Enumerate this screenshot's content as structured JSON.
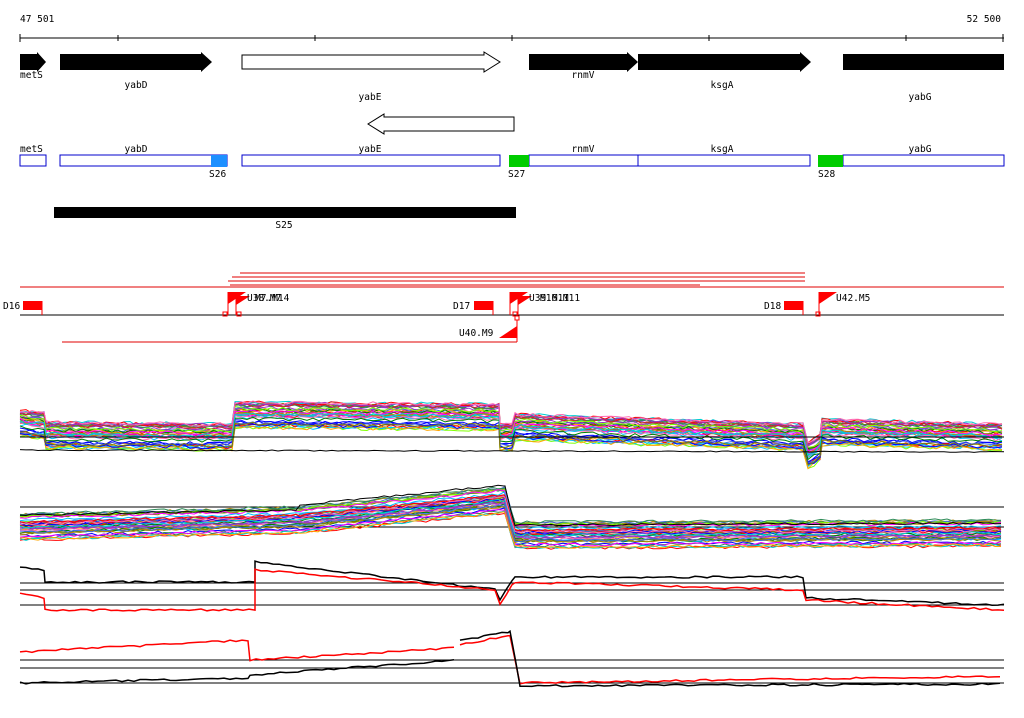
{
  "ruler": {
    "start": "47 501",
    "end": "52 500"
  },
  "genes_top": [
    {
      "name": "metS",
      "label": "metS"
    },
    {
      "name": "yabD",
      "label": "yabD"
    },
    {
      "name": "yabE",
      "label": "yabE"
    },
    {
      "name": "rnmV",
      "label": "rnmV"
    },
    {
      "name": "ksgA",
      "label": "ksgA"
    },
    {
      "name": "yabG",
      "label": "yabG"
    }
  ],
  "genes_boxes": [
    {
      "name": "metS",
      "label": "metS"
    },
    {
      "name": "yabD",
      "label": "yabD"
    },
    {
      "name": "yabE",
      "label": "yabE"
    },
    {
      "name": "rnmV",
      "label": "rnmV"
    },
    {
      "name": "ksgA",
      "label": "ksgA"
    },
    {
      "name": "yabG",
      "label": "yabG"
    }
  ],
  "segments": [
    {
      "label": "S26",
      "color": "#1e90ff"
    },
    {
      "label": "S27",
      "color": "#00cc00"
    },
    {
      "label": "S28",
      "color": "#00cc00"
    }
  ],
  "region": {
    "label": "S25"
  },
  "down_markers": [
    {
      "label": "D16"
    },
    {
      "label": "D17"
    },
    {
      "label": "D18"
    }
  ],
  "up_markers": [
    {
      "label": "U38.M7"
    },
    {
      "label": "U39.M11"
    },
    {
      "label": "U42.M5"
    }
  ],
  "lower_marker": {
    "label": "U40.M9"
  },
  "tracks": [
    {
      "name": "expression-track-1"
    },
    {
      "name": "expression-track-2"
    },
    {
      "name": "expression-track-3"
    },
    {
      "name": "expression-track-4"
    }
  ],
  "colors": {
    "arrow": "#000000",
    "box_border": "#0000cc",
    "marker": "#ff0000",
    "selection": "#ff0000"
  }
}
